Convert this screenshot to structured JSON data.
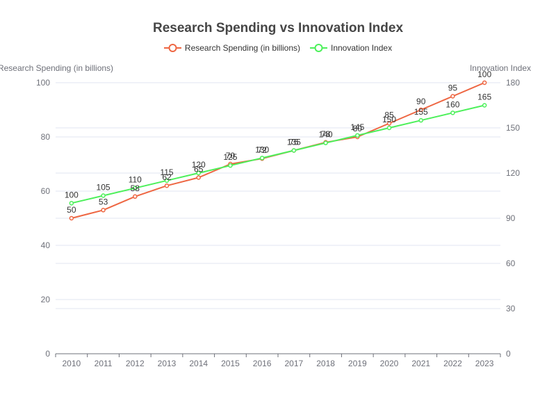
{
  "chart_data": {
    "type": "line",
    "title": "Research Spending vs Innovation Index",
    "categories": [
      "2010",
      "2011",
      "2012",
      "2013",
      "2014",
      "2015",
      "2016",
      "2017",
      "2018",
      "2019",
      "2020",
      "2021",
      "2022",
      "2023"
    ],
    "series": [
      {
        "name": "Research Spending (in billions)",
        "axis": "left",
        "color": "#ee6642",
        "values": [
          50,
          53,
          58,
          62,
          65,
          70,
          72,
          75,
          78,
          80,
          85,
          90,
          95,
          100
        ]
      },
      {
        "name": "Innovation Index",
        "axis": "right",
        "color": "#4cf05a",
        "values": [
          100,
          105,
          110,
          115,
          120,
          125,
          130,
          135,
          140,
          145,
          150,
          155,
          160,
          165
        ]
      }
    ],
    "y_left": {
      "label": "Research Spending (in billions)",
      "min": 0,
      "max": 100,
      "ticks": [
        0,
        20,
        40,
        60,
        80,
        100
      ]
    },
    "y_right": {
      "label": "Innovation Index",
      "min": 0,
      "max": 180,
      "ticks": [
        0,
        30,
        60,
        90,
        120,
        150,
        180
      ]
    },
    "legend_position": "top-center",
    "grid": true
  }
}
